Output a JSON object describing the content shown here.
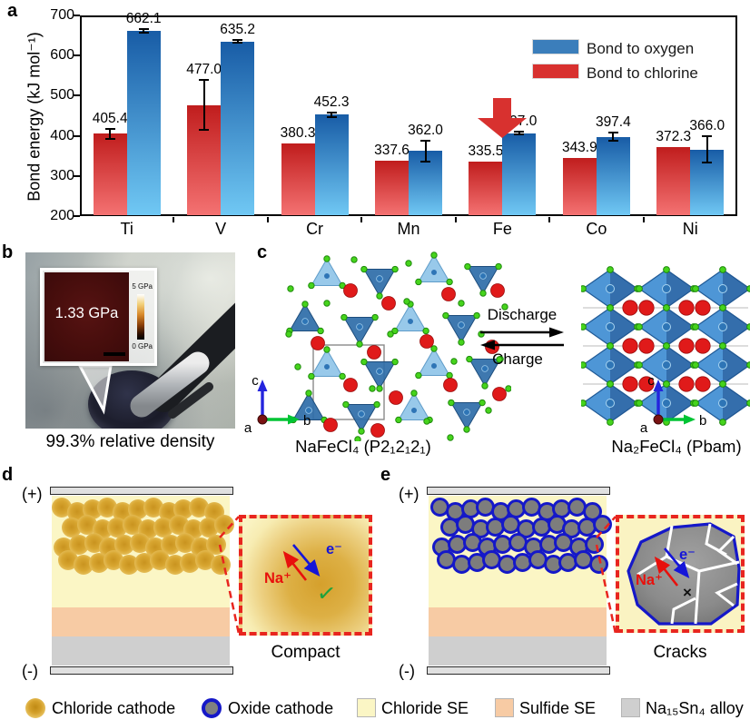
{
  "panels": {
    "a": {
      "label": "a",
      "legend": [
        {
          "label": "Bond to oxygen",
          "color": "#3b7ebb"
        },
        {
          "label": "Bond to chlorine",
          "color": "#d8312f"
        }
      ]
    },
    "b": {
      "label": "b",
      "inset_value": "1.33 GPa",
      "scale_max": "5 GPa",
      "scale_min": "0 GPa",
      "caption": "99.3% relative density"
    },
    "c": {
      "label": "c",
      "left_structure": "NaFeCl₄ (P2₁2₁2₁)",
      "right_structure": "Na₂FeCl₄ (Pbam)",
      "forward": "Discharge",
      "backward": "Charge",
      "axes": {
        "a": "a",
        "b": "b",
        "c": "c"
      }
    },
    "d": {
      "label": "d",
      "positive": "(+)",
      "negative": "(-)",
      "ion": "Na⁺",
      "electron": "e⁻",
      "check": "✓",
      "caption": "Compact"
    },
    "e": {
      "label": "e",
      "positive": "(+)",
      "negative": "(-)",
      "ion": "Na⁺",
      "electron": "e⁻",
      "cross": "×",
      "caption": "Cracks"
    }
  },
  "chart_data": {
    "type": "bar",
    "title": "",
    "xlabel": "",
    "ylabel": "Bond energy (kJ mol⁻¹)",
    "ylim": [
      200,
      700
    ],
    "yticks": [
      200,
      300,
      400,
      500,
      600,
      700
    ],
    "categories": [
      "Ti",
      "V",
      "Cr",
      "Mn",
      "Fe",
      "Co",
      "Ni"
    ],
    "series": [
      {
        "name": "Bond to chlorine",
        "color_top": "#c01d1d",
        "color_bottom": "#f47272",
        "values": [
          405.4,
          477.0,
          380.3,
          337.6,
          335.5,
          343.9,
          372.3
        ],
        "errors": [
          12,
          63,
          0,
          0,
          0,
          0,
          0
        ]
      },
      {
        "name": "Bond to oxygen",
        "color_top": "#185ca6",
        "color_bottom": "#70c8f4",
        "values": [
          662.1,
          635.2,
          452.3,
          362.0,
          407.0,
          397.4,
          366.0
        ],
        "errors": [
          4,
          4,
          5,
          26,
          4,
          10,
          33
        ]
      }
    ],
    "annotations": [
      {
        "type": "down-arrow",
        "category": "Fe",
        "color": "#d8312f"
      }
    ],
    "legend_position": "top-right",
    "grid": false
  },
  "footer_legend": [
    {
      "swatch": "gold-circle",
      "label": "Chloride cathode"
    },
    {
      "swatch": "oxide-circle",
      "label": "Oxide cathode"
    },
    {
      "swatch": "chloride-se-square",
      "label": "Chloride SE",
      "color": "#fbf6c5"
    },
    {
      "swatch": "sulfide-se-square",
      "label": "Sulfide SE",
      "color": "#f7cba4"
    },
    {
      "swatch": "alloy-square",
      "label": "Na₁₅Sn₄ alloy",
      "color": "#cfcfcf"
    }
  ]
}
